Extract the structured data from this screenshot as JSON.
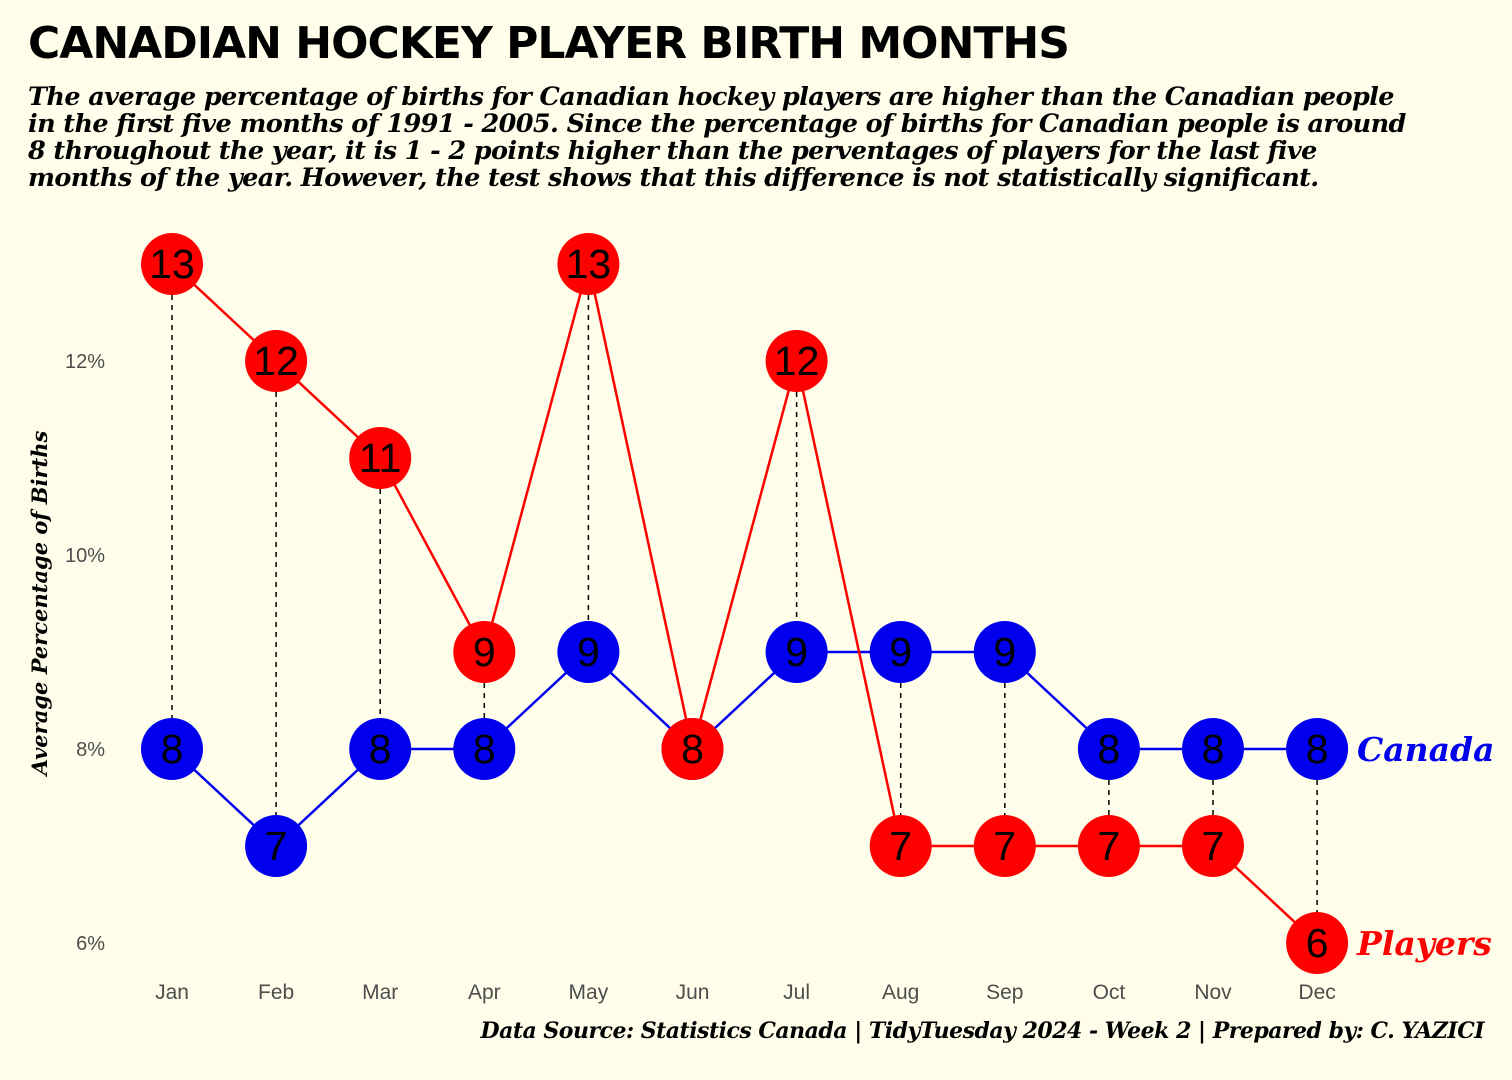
{
  "title": "CANADIAN HOCKEY PLAYER BIRTH MONTHS",
  "subtitle": "The average percentage of births for Canadian hockey players are higher than the Canadian people in the first five months of 1991 - 2005. Since the percentage of births for Canadian people is around 8 throughout the year, it is 1 - 2 points higher than the perventages of players for the last five months of the year. However, the test shows that this difference is not statistically significant.",
  "caption": "Data Source: Statistics Canada | TidyTuesday 2024 - Week 2 | Prepared by: C. YAZICI",
  "chart_data": {
    "type": "line",
    "categories": [
      "Jan",
      "Feb",
      "Mar",
      "Apr",
      "May",
      "Jun",
      "Jul",
      "Aug",
      "Sep",
      "Oct",
      "Nov",
      "Dec"
    ],
    "ylabel": "Average Percentage of Births",
    "xlabel": "",
    "ylim": [
      5.8,
      13.2
    ],
    "yticks": [
      6,
      8,
      10,
      12
    ],
    "ytick_labels": [
      "6%",
      "8%",
      "10%",
      "12%"
    ],
    "grid": false,
    "series": [
      {
        "name": "Canada",
        "color": "#0000ee",
        "values": [
          8,
          7,
          8,
          8,
          9,
          8,
          9,
          9,
          9,
          8,
          8,
          8
        ],
        "labels": [
          "8",
          "7",
          "8",
          "8",
          "9",
          "8",
          "9",
          "9",
          "9",
          "8",
          "8",
          "8"
        ]
      },
      {
        "name": "Players",
        "color": "#ff0000",
        "values": [
          13,
          12,
          11,
          9,
          13,
          8,
          12,
          7,
          7,
          7,
          7,
          6
        ],
        "labels": [
          "13",
          "12",
          "11",
          "9",
          "13",
          "8",
          "12",
          "7",
          "7",
          "7",
          "7",
          "6"
        ]
      }
    ],
    "connectors": "dashed vertical lines between series at each month"
  }
}
